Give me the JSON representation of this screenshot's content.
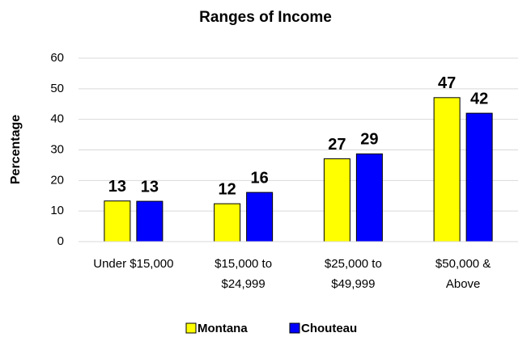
{
  "chart_data": {
    "type": "bar",
    "title": "Ranges of Income",
    "y_label": "Percentage",
    "categories": [
      [
        "Under $15,000"
      ],
      [
        "$15,000 to",
        "$24,999"
      ],
      [
        "$25,000 to",
        "$49,999"
      ],
      [
        "$50,000 &",
        "Above"
      ]
    ],
    "series": [
      {
        "name": "Montana",
        "color": "#ffff00",
        "values": [
          13.3,
          12.4,
          27.1,
          47.1
        ],
        "value_labels": [
          "13",
          "12",
          "27",
          "47"
        ]
      },
      {
        "name": "Chouteau",
        "color": "#0000ff",
        "values": [
          13.2,
          16.1,
          28.7,
          42.0
        ],
        "value_labels": [
          "13",
          "16",
          "29",
          "42"
        ]
      }
    ],
    "ylim": [
      0,
      60
    ],
    "yticks": [
      0,
      10,
      20,
      30,
      40,
      50,
      60
    ],
    "grid": true,
    "legend": "bottom"
  }
}
